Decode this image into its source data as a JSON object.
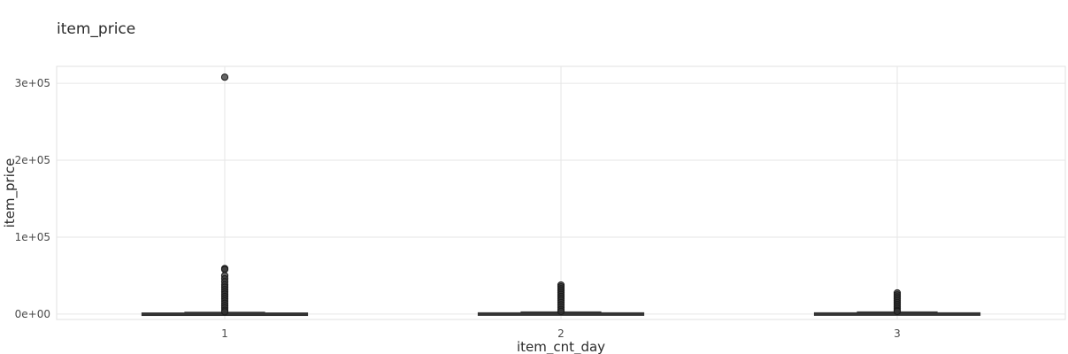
{
  "chart_data": {
    "type": "box",
    "title": "item_price",
    "xlabel": "item_cnt_day",
    "ylabel": "item_price",
    "categories": [
      "1",
      "2",
      "3"
    ],
    "y_ticks": [
      0,
      100000,
      200000,
      300000
    ],
    "y_tick_labels": [
      "0e+00",
      "1e+05",
      "2e+05",
      "3e+05"
    ],
    "ylim": [
      -7000,
      322000
    ],
    "grid": true,
    "boxes": [
      {
        "category": "1",
        "min": 0,
        "q1": 250,
        "median": 400,
        "q3": 1000,
        "max": 2200,
        "outliers": [
          307980,
          59200,
          58000,
          50000,
          46000,
          42000,
          38000,
          35000,
          32000,
          29000,
          26000,
          23000,
          20000,
          17000,
          14000,
          11000,
          8000,
          5000,
          3000
        ]
      },
      {
        "category": "2",
        "min": 0,
        "q1": 300,
        "median": 500,
        "q3": 1200,
        "max": 2600,
        "outliers": [
          37800,
          35500,
          33000,
          30500,
          28000,
          25500,
          23000,
          20500,
          18000,
          15000,
          12000,
          9000,
          6000,
          3500
        ]
      },
      {
        "category": "3",
        "min": 0,
        "q1": 300,
        "median": 500,
        "q3": 1200,
        "max": 2600,
        "outliers": [
          27500,
          25000,
          22500,
          20000,
          17500,
          15000,
          12500,
          10000,
          7500,
          5000,
          3500
        ]
      }
    ]
  }
}
